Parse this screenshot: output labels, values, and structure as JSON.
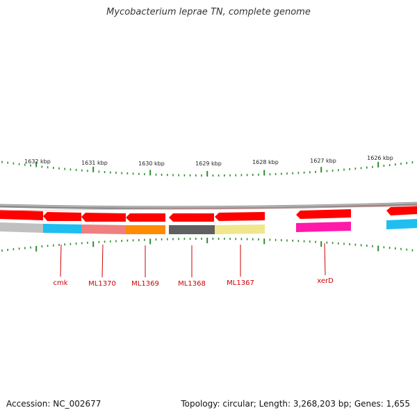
{
  "title": "Mycobacterium leprae TN, complete genome",
  "accession": "Accession: NC_002677",
  "topology": "Topology: circular; Length: 3,268,203 bp; Genes: 1,655",
  "kbp_labels": [
    "1632 kbp",
    "1631 kbp",
    "1630 kbp",
    "1629 kbp",
    "1628 kbp",
    "1627 kbp",
    "1626 kbp"
  ],
  "gene_labels": [
    "cmk",
    "ML1370",
    "ML1369",
    "ML1368",
    "ML1367",
    "xerD"
  ],
  "colors": {
    "backbone": "#8c8c8c",
    "cds": "#ff0000",
    "tick": "#2e8b2e",
    "label": "#cc0000",
    "cog_gray": "#c0c0c0",
    "cog_cyan": "#1ebef0",
    "cog_salmon": "#f08080",
    "cog_orange": "#ff8c00",
    "cog_darkgray": "#606060",
    "cog_khaki": "#f0e68c",
    "cog_magenta": "#ff1aaa"
  }
}
